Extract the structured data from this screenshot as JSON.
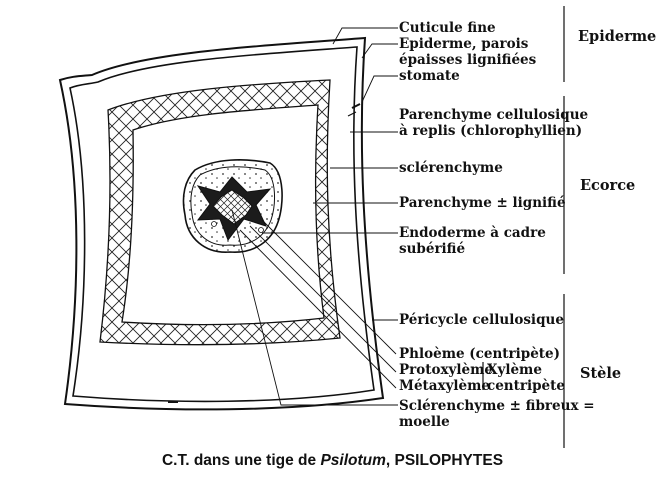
{
  "labels": {
    "cuticule": "Cuticule fine",
    "epiderme_1": "Epiderme, parois",
    "epiderme_2": "épaisses lignifiées",
    "stomate": "stomate",
    "parenchyme_1": "Parenchyme cellulosique",
    "parenchyme_2": "à replis (chlorophyllien)",
    "sclerenchyme": "sclérenchyme",
    "parenchyme_lignifie": "Parenchyme ± lignifié",
    "endoderme_1": "Endoderme à cadre",
    "endoderme_2": "subérifié",
    "pericycle": "Péricycle cellulosique",
    "phloeme": "Phloème (centripète)",
    "protoxyleme": "Protoxylème",
    "metaxyleme": "Métaxylème",
    "xyleme_1": "Xylème",
    "xyleme_2": "centripète",
    "moelle_1": "Sclérenchyme ± fibreux =",
    "moelle_2": "moelle"
  },
  "regions": {
    "epiderme": "Epiderme",
    "ecorce": "Ecorce",
    "stele": "Stèle"
  },
  "caption": {
    "prefix": "C.T. dans une tige de ",
    "genus": "Psilotum",
    "suffix": ", PSILOPHYTES"
  }
}
